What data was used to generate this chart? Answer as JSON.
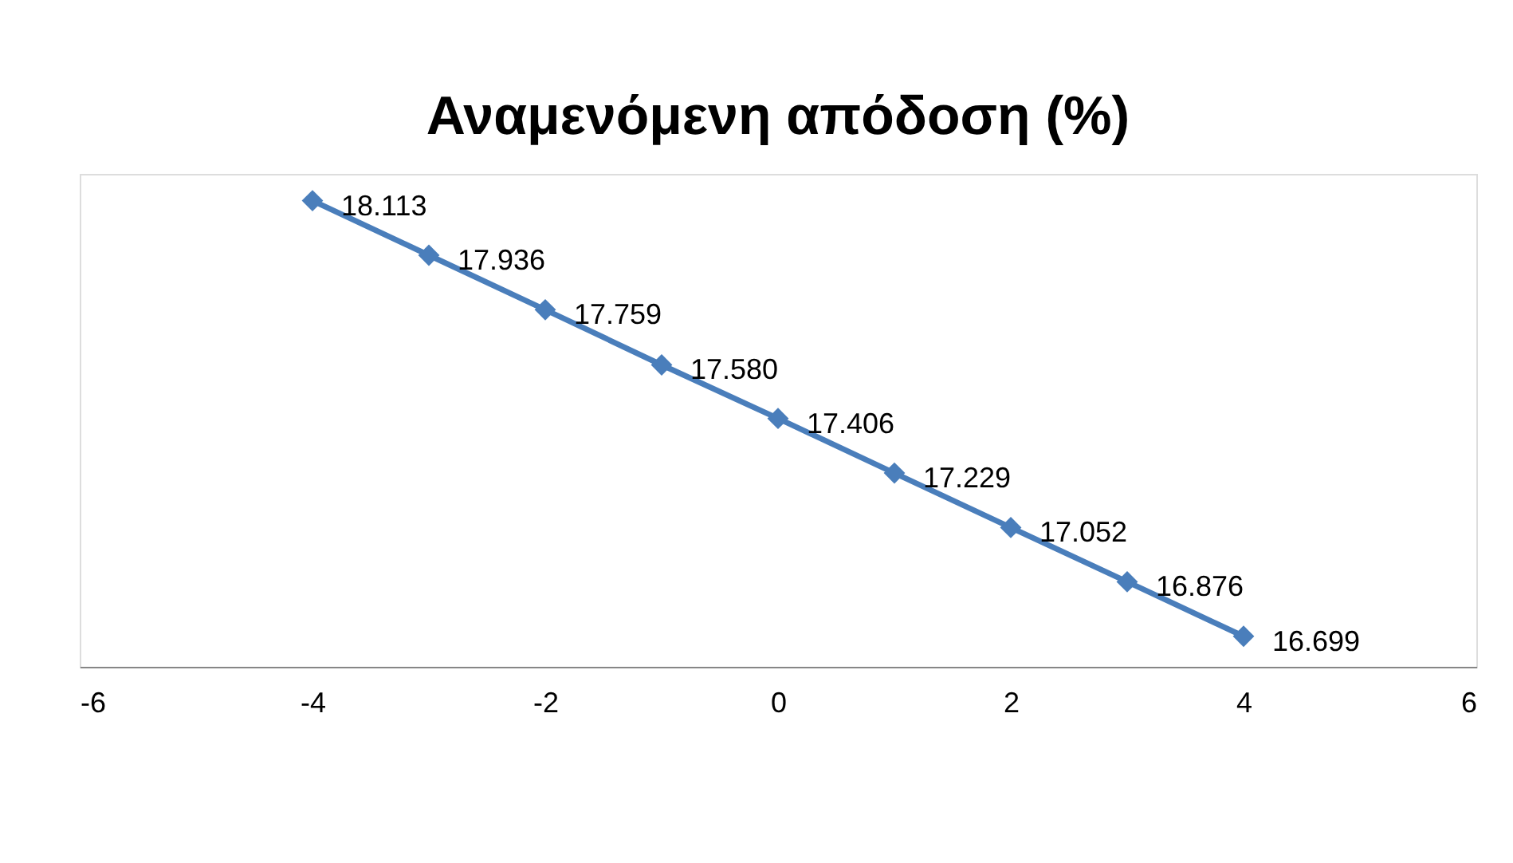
{
  "chart_data": {
    "type": "line",
    "title": "Αναμενόμενη απόδοση (%)",
    "x": [
      -4,
      -3,
      -2,
      -1,
      0,
      1,
      2,
      3,
      4
    ],
    "series": [
      {
        "color": "#4a7ebb",
        "values": [
          18.113,
          17.936,
          17.759,
          17.58,
          17.406,
          17.229,
          17.052,
          16.876,
          16.699
        ],
        "value_labels": [
          "18.113",
          "17.936",
          "17.759",
          "17.580",
          "17.406",
          "17.229",
          "17.052",
          "16.876",
          "16.699"
        ]
      }
    ],
    "xlim": [
      -6,
      6
    ],
    "xticks": [
      -6,
      -4,
      -2,
      0,
      2,
      4,
      6
    ],
    "ylim": [
      16.6,
      18.2
    ],
    "tick_labels": "x",
    "grid": false,
    "marker": "diamond",
    "line_style": "solid"
  }
}
